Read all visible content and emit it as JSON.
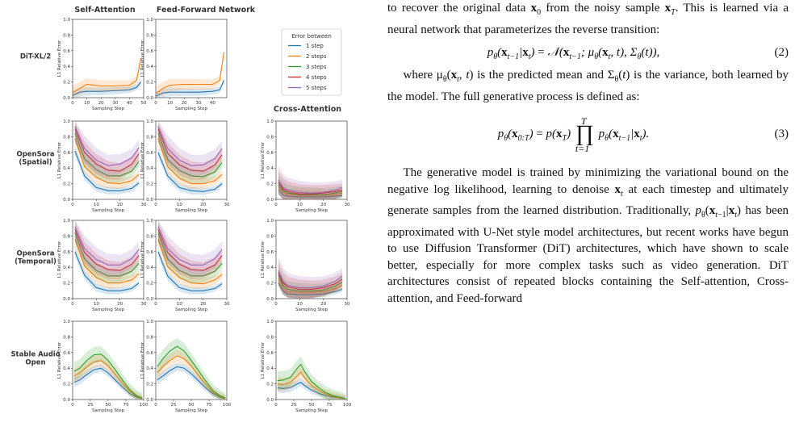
{
  "figure": {
    "col_titles": [
      "Self-Attention",
      "Feed-Forward Network",
      "Cross-Attention"
    ],
    "row_labels": [
      [
        "DiT-XL/2"
      ],
      [
        "OpenSora",
        "(Spatial)"
      ],
      [
        "OpenSora",
        "(Temporal)"
      ],
      [
        "Stable Audio",
        "Open"
      ]
    ],
    "xlabel": "Sampling Step",
    "ylabel": "L1 Relative Error",
    "legend_title": "Error between",
    "series_names": [
      "1 step",
      "2 steps",
      "3 steps",
      "4 steps",
      "5 steps"
    ],
    "series_colors": [
      "#1f77b4",
      "#ff7f0e",
      "#2ca02c",
      "#d62728",
      "#9467bd"
    ]
  },
  "chart_data": [
    {
      "type": "line",
      "panel": "DiT-XL/2 / Self-Attention",
      "xlabel": "Sampling Step",
      "ylabel": "L1 Relative Error",
      "xlim": [
        0,
        50
      ],
      "ylim": [
        0,
        1.0
      ],
      "xticks": [
        0,
        10,
        20,
        30,
        40,
        50
      ],
      "yticks": [
        0.0,
        0.2,
        0.4,
        0.6,
        0.8,
        1.0
      ],
      "x": [
        0,
        5,
        10,
        20,
        30,
        40,
        45,
        48
      ],
      "series": [
        {
          "name": "1 step",
          "values": [
            0.03,
            0.07,
            0.08,
            0.08,
            0.09,
            0.1,
            0.13,
            0.2
          ]
        },
        {
          "name": "2 steps",
          "values": [
            0.06,
            0.12,
            0.17,
            0.15,
            0.15,
            0.16,
            0.22,
            0.5
          ]
        }
      ]
    },
    {
      "type": "line",
      "panel": "DiT-XL/2 / Feed-Forward Network",
      "xlabel": "Sampling Step",
      "ylabel": "L1 Relative Error",
      "xlim": [
        0,
        50
      ],
      "ylim": [
        0,
        1.0
      ],
      "xticks": [
        0,
        10,
        20,
        30,
        40
      ],
      "yticks": [
        0.0,
        0.2,
        0.4,
        0.6,
        0.8,
        1.0
      ],
      "x": [
        0,
        5,
        10,
        20,
        30,
        40,
        45,
        48
      ],
      "series": [
        {
          "name": "1 step",
          "values": [
            0.02,
            0.06,
            0.07,
            0.07,
            0.07,
            0.08,
            0.1,
            0.22
          ]
        },
        {
          "name": "2 steps",
          "values": [
            0.05,
            0.12,
            0.16,
            0.17,
            0.17,
            0.17,
            0.22,
            0.58
          ]
        }
      ]
    },
    {
      "type": "line",
      "panel": "OpenSora (Spatial) / Self-Attention",
      "xlabel": "Sampling Step",
      "ylabel": "L1 Relative Error",
      "xlim": [
        0,
        30
      ],
      "ylim": [
        0,
        1.0
      ],
      "xticks": [
        0,
        10,
        20,
        30
      ],
      "yticks": [
        0.0,
        0.2,
        0.4,
        0.6,
        0.8,
        1.0
      ],
      "x": [
        1,
        5,
        10,
        15,
        20,
        25,
        28
      ],
      "series": [
        {
          "name": "1 step",
          "values": [
            0.62,
            0.3,
            0.15,
            0.11,
            0.11,
            0.14,
            0.21
          ]
        },
        {
          "name": "2 steps",
          "values": [
            0.78,
            0.42,
            0.28,
            0.21,
            0.2,
            0.24,
            0.32
          ]
        },
        {
          "name": "3 steps",
          "values": [
            0.85,
            0.52,
            0.38,
            0.3,
            0.3,
            0.36,
            0.48
          ]
        },
        {
          "name": "4 steps",
          "values": [
            0.9,
            0.6,
            0.45,
            0.37,
            0.36,
            0.45,
            0.58
          ]
        },
        {
          "name": "5 steps",
          "values": [
            0.93,
            0.65,
            0.5,
            0.43,
            0.45,
            0.53,
            0.66
          ]
        }
      ]
    },
    {
      "type": "line",
      "panel": "OpenSora (Spatial) / Feed-Forward Network",
      "xlabel": "Sampling Step",
      "ylabel": "L1 Relative Error",
      "xlim": [
        0,
        30
      ],
      "ylim": [
        0,
        1.0
      ],
      "xticks": [
        0,
        10,
        20,
        30
      ],
      "yticks": [
        0.0,
        0.2,
        0.4,
        0.6,
        0.8,
        1.0
      ],
      "x": [
        1,
        5,
        10,
        15,
        20,
        25,
        28
      ],
      "series": [
        {
          "name": "1 step",
          "values": [
            0.6,
            0.3,
            0.15,
            0.11,
            0.1,
            0.13,
            0.2
          ]
        },
        {
          "name": "2 steps",
          "values": [
            0.78,
            0.42,
            0.27,
            0.2,
            0.2,
            0.24,
            0.32
          ]
        },
        {
          "name": "3 steps",
          "values": [
            0.85,
            0.51,
            0.37,
            0.3,
            0.29,
            0.35,
            0.47
          ]
        },
        {
          "name": "4 steps",
          "values": [
            0.9,
            0.59,
            0.44,
            0.37,
            0.36,
            0.44,
            0.57
          ]
        },
        {
          "name": "5 steps",
          "values": [
            0.93,
            0.65,
            0.5,
            0.43,
            0.44,
            0.52,
            0.65
          ]
        }
      ]
    },
    {
      "type": "line",
      "panel": "OpenSora (Spatial) / Cross-Attention",
      "xlabel": "Sampling Step",
      "ylabel": "L1 Relative Error",
      "xlim": [
        0,
        30
      ],
      "ylim": [
        0,
        1.0
      ],
      "xticks": [
        0,
        10,
        20,
        30
      ],
      "yticks": [
        0.0,
        0.2,
        0.4,
        0.6,
        0.8,
        1.0
      ],
      "x": [
        1,
        3,
        5,
        10,
        15,
        20,
        25,
        28
      ],
      "series": [
        {
          "name": "1 step",
          "values": [
            0.12,
            0.06,
            0.04,
            0.03,
            0.03,
            0.03,
            0.04,
            0.05
          ]
        },
        {
          "name": "2 steps",
          "values": [
            0.16,
            0.09,
            0.06,
            0.05,
            0.05,
            0.05,
            0.06,
            0.08
          ]
        },
        {
          "name": "3 steps",
          "values": [
            0.19,
            0.11,
            0.08,
            0.06,
            0.06,
            0.06,
            0.08,
            0.1
          ]
        },
        {
          "name": "4 steps",
          "values": [
            0.22,
            0.13,
            0.1,
            0.07,
            0.07,
            0.08,
            0.1,
            0.12
          ]
        },
        {
          "name": "5 steps",
          "values": [
            0.25,
            0.15,
            0.12,
            0.09,
            0.08,
            0.09,
            0.12,
            0.15
          ]
        }
      ]
    },
    {
      "type": "line",
      "panel": "OpenSora (Temporal) / Self-Attention",
      "xlabel": "Sampling Step",
      "ylabel": "L1 Relative Error",
      "xlim": [
        0,
        30
      ],
      "ylim": [
        0,
        1.0
      ],
      "xticks": [
        0,
        10,
        20,
        30
      ],
      "yticks": [
        0.0,
        0.2,
        0.4,
        0.6,
        0.8,
        1.0
      ],
      "x": [
        1,
        5,
        10,
        15,
        20,
        25,
        28
      ],
      "series": [
        {
          "name": "1 step",
          "values": [
            0.6,
            0.3,
            0.14,
            0.1,
            0.1,
            0.13,
            0.2
          ]
        },
        {
          "name": "2 steps",
          "values": [
            0.76,
            0.42,
            0.27,
            0.2,
            0.2,
            0.24,
            0.32
          ]
        },
        {
          "name": "3 steps",
          "values": [
            0.84,
            0.51,
            0.36,
            0.29,
            0.29,
            0.35,
            0.45
          ]
        },
        {
          "name": "4 steps",
          "values": [
            0.88,
            0.59,
            0.44,
            0.37,
            0.36,
            0.44,
            0.55
          ]
        },
        {
          "name": "5 steps",
          "values": [
            0.92,
            0.64,
            0.5,
            0.43,
            0.43,
            0.51,
            0.63
          ]
        }
      ]
    },
    {
      "type": "line",
      "panel": "OpenSora (Temporal) / Feed-Forward Network",
      "xlabel": "Sampling Step",
      "ylabel": "L1 Relative Error",
      "xlim": [
        0,
        30
      ],
      "ylim": [
        0,
        1.0
      ],
      "xticks": [
        0,
        10,
        20,
        30
      ],
      "yticks": [
        0.0,
        0.2,
        0.4,
        0.6,
        0.8,
        1.0
      ],
      "x": [
        1,
        5,
        10,
        15,
        20,
        25,
        28
      ],
      "series": [
        {
          "name": "1 step",
          "values": [
            0.6,
            0.29,
            0.14,
            0.1,
            0.1,
            0.13,
            0.19
          ]
        },
        {
          "name": "2 steps",
          "values": [
            0.76,
            0.41,
            0.27,
            0.2,
            0.19,
            0.24,
            0.31
          ]
        },
        {
          "name": "3 steps",
          "values": [
            0.84,
            0.51,
            0.36,
            0.29,
            0.29,
            0.35,
            0.45
          ]
        },
        {
          "name": "4 steps",
          "values": [
            0.88,
            0.59,
            0.44,
            0.37,
            0.36,
            0.43,
            0.55
          ]
        },
        {
          "name": "5 steps",
          "values": [
            0.92,
            0.64,
            0.5,
            0.43,
            0.43,
            0.51,
            0.63
          ]
        }
      ]
    },
    {
      "type": "line",
      "panel": "OpenSora (Temporal) / Cross-Attention",
      "xlabel": "Sampling Step",
      "ylabel": "L1 Relative Error",
      "xlim": [
        0,
        30
      ],
      "ylim": [
        0,
        1.0
      ],
      "xticks": [
        0,
        10,
        20,
        30
      ],
      "yticks": [
        0.0,
        0.2,
        0.4,
        0.6,
        0.8,
        1.0
      ],
      "x": [
        1,
        3,
        5,
        10,
        15,
        20,
        25,
        28
      ],
      "series": [
        {
          "name": "1 step",
          "values": [
            0.2,
            0.1,
            0.06,
            0.05,
            0.05,
            0.06,
            0.09,
            0.12
          ]
        },
        {
          "name": "2 steps",
          "values": [
            0.26,
            0.14,
            0.09,
            0.08,
            0.08,
            0.09,
            0.13,
            0.17
          ]
        },
        {
          "name": "3 steps",
          "values": [
            0.3,
            0.17,
            0.12,
            0.1,
            0.1,
            0.11,
            0.16,
            0.21
          ]
        },
        {
          "name": "4 steps",
          "values": [
            0.33,
            0.2,
            0.15,
            0.12,
            0.12,
            0.14,
            0.19,
            0.25
          ]
        },
        {
          "name": "5 steps",
          "values": [
            0.36,
            0.22,
            0.17,
            0.14,
            0.14,
            0.16,
            0.22,
            0.29
          ]
        }
      ]
    },
    {
      "type": "line",
      "panel": "Stable Audio Open / Self-Attention",
      "xlabel": "Sampling Step",
      "ylabel": "L1 Relative Error",
      "xlim": [
        0,
        100
      ],
      "ylim": [
        0,
        1.0
      ],
      "xticks": [
        0,
        25,
        50,
        75,
        100
      ],
      "yticks": [
        0.0,
        0.2,
        0.4,
        0.6,
        0.8,
        1.0
      ],
      "x": [
        2,
        10,
        20,
        30,
        40,
        50,
        60,
        70,
        80,
        90,
        98
      ],
      "series": [
        {
          "name": "1 step",
          "values": [
            0.22,
            0.25,
            0.32,
            0.38,
            0.4,
            0.34,
            0.25,
            0.16,
            0.08,
            0.03,
            0.01
          ]
        },
        {
          "name": "2 steps",
          "values": [
            0.3,
            0.34,
            0.42,
            0.48,
            0.5,
            0.43,
            0.32,
            0.21,
            0.11,
            0.04,
            0.01
          ]
        },
        {
          "name": "3 steps",
          "values": [
            0.36,
            0.4,
            0.5,
            0.57,
            0.58,
            0.5,
            0.38,
            0.25,
            0.13,
            0.05,
            0.02
          ]
        }
      ]
    },
    {
      "type": "line",
      "panel": "Stable Audio Open / Feed-Forward Network",
      "xlabel": "Sampling Step",
      "ylabel": "L1 Relative Error",
      "xlim": [
        0,
        100
      ],
      "ylim": [
        0,
        1.0
      ],
      "xticks": [
        0,
        25,
        50,
        75,
        100
      ],
      "yticks": [
        0.0,
        0.2,
        0.4,
        0.6,
        0.8,
        1.0
      ],
      "x": [
        2,
        10,
        20,
        30,
        40,
        50,
        60,
        70,
        80,
        90,
        98
      ],
      "series": [
        {
          "name": "1 step",
          "values": [
            0.25,
            0.3,
            0.37,
            0.42,
            0.4,
            0.33,
            0.24,
            0.15,
            0.08,
            0.03,
            0.01
          ]
        },
        {
          "name": "2 steps",
          "values": [
            0.34,
            0.42,
            0.5,
            0.56,
            0.52,
            0.43,
            0.31,
            0.2,
            0.1,
            0.04,
            0.01
          ]
        },
        {
          "name": "3 steps",
          "values": [
            0.42,
            0.52,
            0.62,
            0.68,
            0.62,
            0.5,
            0.37,
            0.24,
            0.12,
            0.05,
            0.02
          ]
        }
      ]
    },
    {
      "type": "line",
      "panel": "Stable Audio Open / Cross-Attention",
      "xlabel": "Sampling Step",
      "ylabel": "L1 Relative Error",
      "xlim": [
        0,
        100
      ],
      "ylim": [
        0,
        1.0
      ],
      "xticks": [
        0,
        25,
        50,
        75,
        100
      ],
      "yticks": [
        0.0,
        0.2,
        0.4,
        0.6,
        0.8,
        1.0
      ],
      "x": [
        2,
        10,
        20,
        30,
        35,
        40,
        50,
        60,
        70,
        80,
        90,
        98
      ],
      "series": [
        {
          "name": "1 step",
          "values": [
            0.15,
            0.14,
            0.15,
            0.2,
            0.22,
            0.18,
            0.12,
            0.08,
            0.05,
            0.03,
            0.02,
            0.01
          ]
        },
        {
          "name": "2 steps",
          "values": [
            0.2,
            0.19,
            0.22,
            0.3,
            0.35,
            0.28,
            0.18,
            0.12,
            0.07,
            0.04,
            0.02,
            0.01
          ]
        },
        {
          "name": "3 steps",
          "values": [
            0.24,
            0.25,
            0.28,
            0.4,
            0.45,
            0.36,
            0.23,
            0.15,
            0.09,
            0.05,
            0.03,
            0.01
          ]
        }
      ]
    }
  ],
  "text": {
    "p1": "to recover the original data x0 from the noisy sample xT. This is learned via a neural network that parameterizes the reverse transition:",
    "eq2": "pθ(xt−1|xt) = N(xt−1; μθ(xt, t), Σθ(t)),",
    "eq2_num": "(2)",
    "p2": "where μθ(xt, t) is the predicted mean and Σθ(t) is the variance, both learned by the model. The full generative process is defined as:",
    "eq3": "pθ(x0:T) = p(xT) ∏ pθ(xt−1|xt).",
    "eq3_num": "(3)",
    "p3": "The generative model is trained by minimizing the variational bound on the negative log likelihood, learning to denoise xt at each timestep and ultimately generate samples from the learned distribution. Traditionally, pθ(xt−1|xt) has been approximated with U-Net style model architectures, but recent works have begun to use Diffusion Transformer (DiT) architectures, which have shown to scale better, especially for more complex tasks such as video generation. DiT architectures consist of repeated blocks containing the Self-attention, Cross-attention, and Feed-forward"
  }
}
